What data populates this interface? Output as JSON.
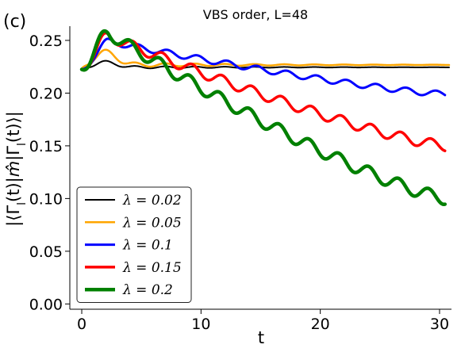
{
  "panel_label": "(c)",
  "chart_data": {
    "type": "line",
    "title": "VBS order, L=48",
    "xlabel": "t",
    "ylabel": "|⟨Γ_l(t)|m̂|Γ_l(t)⟩|",
    "xlim": [
      -1,
      31
    ],
    "ylim": [
      -0.005,
      0.262
    ],
    "xticks": [
      0,
      10,
      20,
      30
    ],
    "yticks": [
      0.0,
      0.05,
      0.1,
      0.15,
      0.2,
      0.25
    ],
    "xtick_labels": [
      "0",
      "10",
      "20",
      "30"
    ],
    "ytick_labels": [
      "0.00",
      "0.05",
      "0.10",
      "0.15",
      "0.20",
      "0.25"
    ],
    "grid": false,
    "legend_position": "bottom-left",
    "series": [
      {
        "name": "λ = 0.02",
        "color": "#000000",
        "width": 2,
        "base": 0.2245,
        "a0": 0.0018,
        "tau0": 10.0,
        "amp": 0.0048,
        "decay": 1.6,
        "shift": 0.0,
        "point_labels": [
          "0.222",
          "0.228",
          "0.225",
          "0.224"
        ]
      },
      {
        "name": "λ = 0.05",
        "color": "#FFA500",
        "width": 2.5,
        "base": 0.2268,
        "a0": 0.0031,
        "tau0": 10.0,
        "amp": 0.012,
        "decay": 2.5,
        "shift": 0.0,
        "point_labels": [
          "0.222",
          "0.237",
          "0.226",
          "0.226"
        ]
      },
      {
        "name": "λ = 0.1",
        "color": "#0000FF",
        "width": 3,
        "base": 0.2225,
        "peak": 0.249,
        "end": 0.199,
        "osc": 0.0028,
        "shift": 0.0,
        "point_labels": [
          "0.222",
          "0.249",
          "0.215",
          "0.199"
        ]
      },
      {
        "name": "λ = 0.15",
        "color": "#FF0000",
        "width": 3.5,
        "base": 0.2225,
        "peak": 0.254,
        "end": 0.15,
        "osc": 0.0048,
        "shift": 1.1,
        "point_labels": [
          "0.222",
          "0.254",
          "0.185",
          "0.150"
        ]
      },
      {
        "name": "λ = 0.2",
        "color": "#008000",
        "width": 4.5,
        "base": 0.2225,
        "peak": 0.257,
        "end": 0.1,
        "osc": 0.0058,
        "shift": 1.6,
        "point_labels": [
          "0.222",
          "0.257",
          "0.150",
          "0.100"
        ]
      }
    ]
  }
}
